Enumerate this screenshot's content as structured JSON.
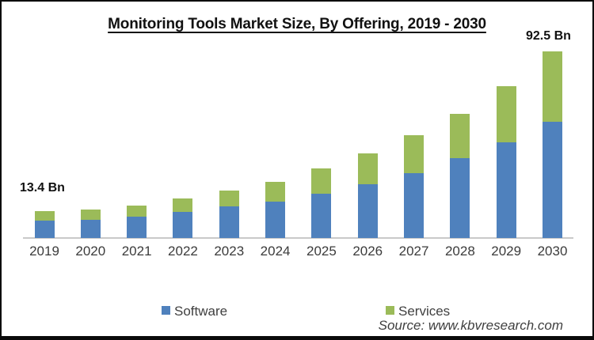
{
  "title": "Monitoring Tools Market Size, By Offering, 2019 - 2030",
  "source": "Source: www.kbvresearch.com",
  "annotations": {
    "first": {
      "text": "13.4 Bn",
      "category": "2019"
    },
    "last": {
      "text": "92.5 Bn",
      "category": "2030"
    }
  },
  "legend": {
    "position": "bottom",
    "items": [
      {
        "label": "Software",
        "color": "#4F81BD"
      },
      {
        "label": "Services",
        "color": "#9BBB59"
      }
    ]
  },
  "chart_data": {
    "type": "bar",
    "stacked": true,
    "title": "Monitoring Tools Market Size, By Offering, 2019 - 2030",
    "xlabel": "",
    "ylabel": "",
    "unit": "Bn USD",
    "grid": false,
    "y_axis_visible": false,
    "x_axis_line_color": "#C9C9C9",
    "ylim": [
      0,
      95
    ],
    "categories": [
      "2019",
      "2020",
      "2021",
      "2022",
      "2023",
      "2024",
      "2025",
      "2026",
      "2027",
      "2028",
      "2029",
      "2030"
    ],
    "series": [
      {
        "name": "Software",
        "color": "#4F81BD",
        "values": [
          8.6,
          9.0,
          10.6,
          12.9,
          15.7,
          18.0,
          22.0,
          26.7,
          32.1,
          39.6,
          47.4,
          57.6
        ]
      },
      {
        "name": "Services",
        "color": "#9BBB59",
        "values": [
          4.8,
          4.9,
          5.5,
          6.7,
          7.8,
          9.8,
          12.5,
          15.2,
          18.9,
          21.9,
          27.9,
          34.9
        ]
      }
    ],
    "totals": [
      13.4,
      13.9,
      16.1,
      19.6,
      23.5,
      27.8,
      34.5,
      41.9,
      51.0,
      61.5,
      75.3,
      92.5
    ],
    "data_labels": [
      {
        "text": "13.4 Bn",
        "category": "2019",
        "position": "above-left"
      },
      {
        "text": "92.5 Bn",
        "category": "2030",
        "position": "above"
      }
    ],
    "source_text": "Source: www.kbvresearch.com"
  }
}
